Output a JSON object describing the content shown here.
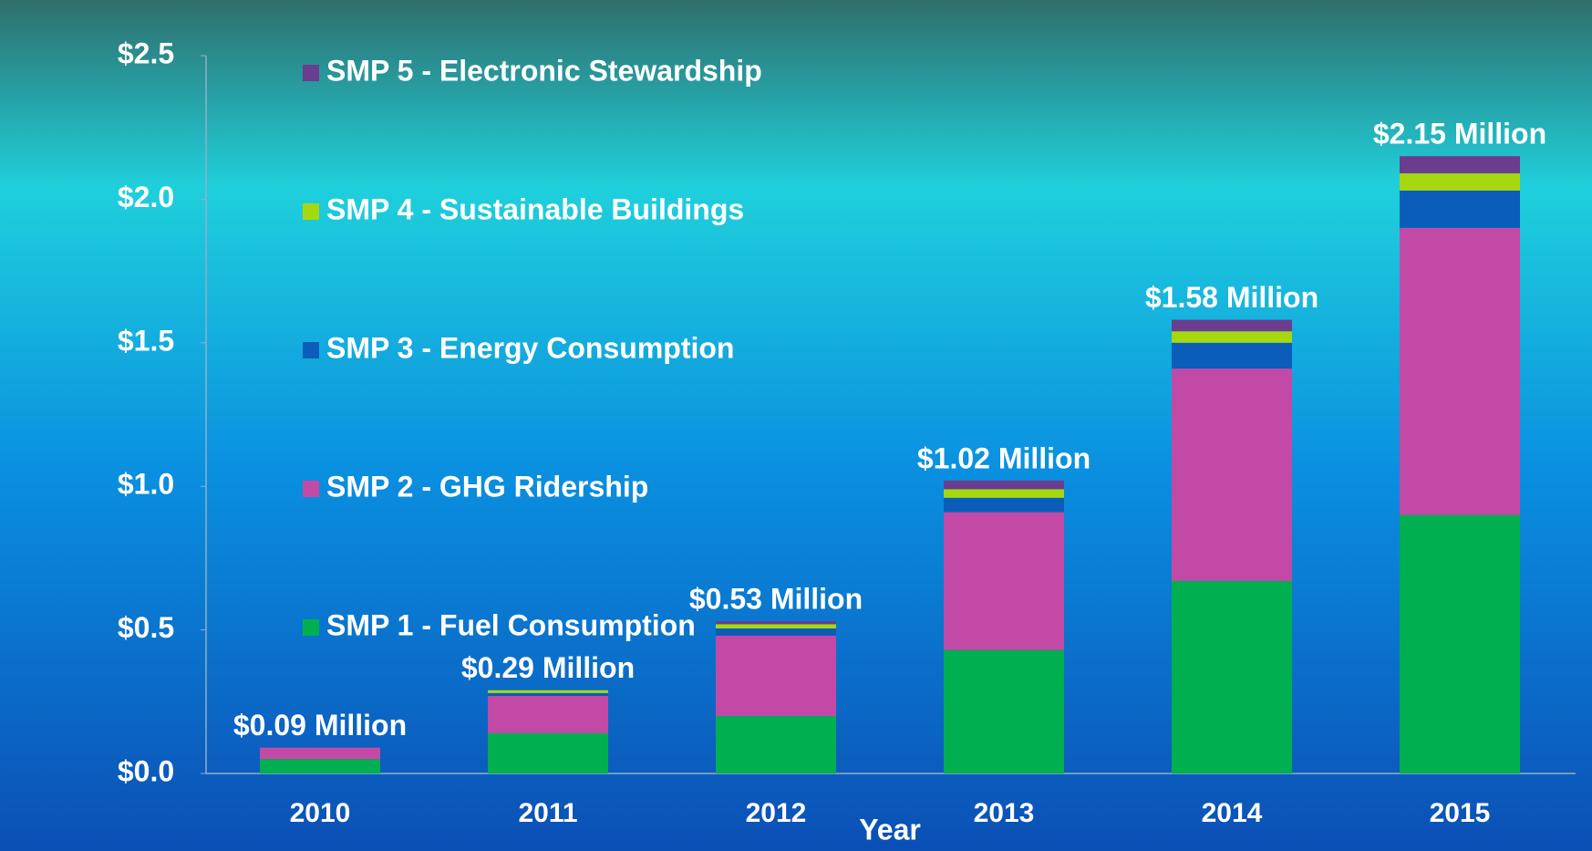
{
  "chart_data": {
    "type": "stacked-bar",
    "x_label": "Year",
    "categories": [
      "2010",
      "2011",
      "2012",
      "2013",
      "2014",
      "2015"
    ],
    "series": [
      {
        "name": "SMP 1 - Fuel Consumption",
        "color": "#00b050",
        "values": [
          0.05,
          0.14,
          0.2,
          0.43,
          0.67,
          0.9
        ]
      },
      {
        "name": "SMP 2 - GHG Ridership",
        "color": "#c24aa6",
        "values": [
          0.04,
          0.13,
          0.28,
          0.48,
          0.74,
          1.0
        ]
      },
      {
        "name": "SMP 3 - Energy Consumption",
        "color": "#0a5db8",
        "values": [
          0,
          0.01,
          0.025,
          0.05,
          0.09,
          0.13
        ]
      },
      {
        "name": "SMP 4 - Sustainable Buildings",
        "color": "#a6d80f",
        "values": [
          0,
          0.01,
          0.015,
          0.03,
          0.04,
          0.06
        ]
      },
      {
        "name": "SMP 5 - Electronic Stewardship",
        "color": "#6a3d8f",
        "values": [
          0,
          0,
          0.01,
          0.03,
          0.04,
          0.06
        ]
      }
    ],
    "totals": {
      "values": [
        0.09,
        0.29,
        0.53,
        1.02,
        1.58,
        2.15
      ],
      "value_labels": [
        "$0.09 Million",
        "$0.29 Million",
        "$0.53 Million",
        "$1.02 Million",
        "$1.58 Million",
        "$2.15 Million"
      ]
    },
    "ylim": [
      0,
      2.5
    ],
    "yticks": [
      {
        "value": 0,
        "label": "$0.0"
      },
      {
        "value": 0.5,
        "label": "$0.5"
      },
      {
        "value": 1,
        "label": "$1.0"
      },
      {
        "value": 1.5,
        "label": "$1.5"
      },
      {
        "value": 2,
        "label": "$2.0"
      },
      {
        "value": 2.5,
        "label": "$2.5"
      }
    ]
  }
}
